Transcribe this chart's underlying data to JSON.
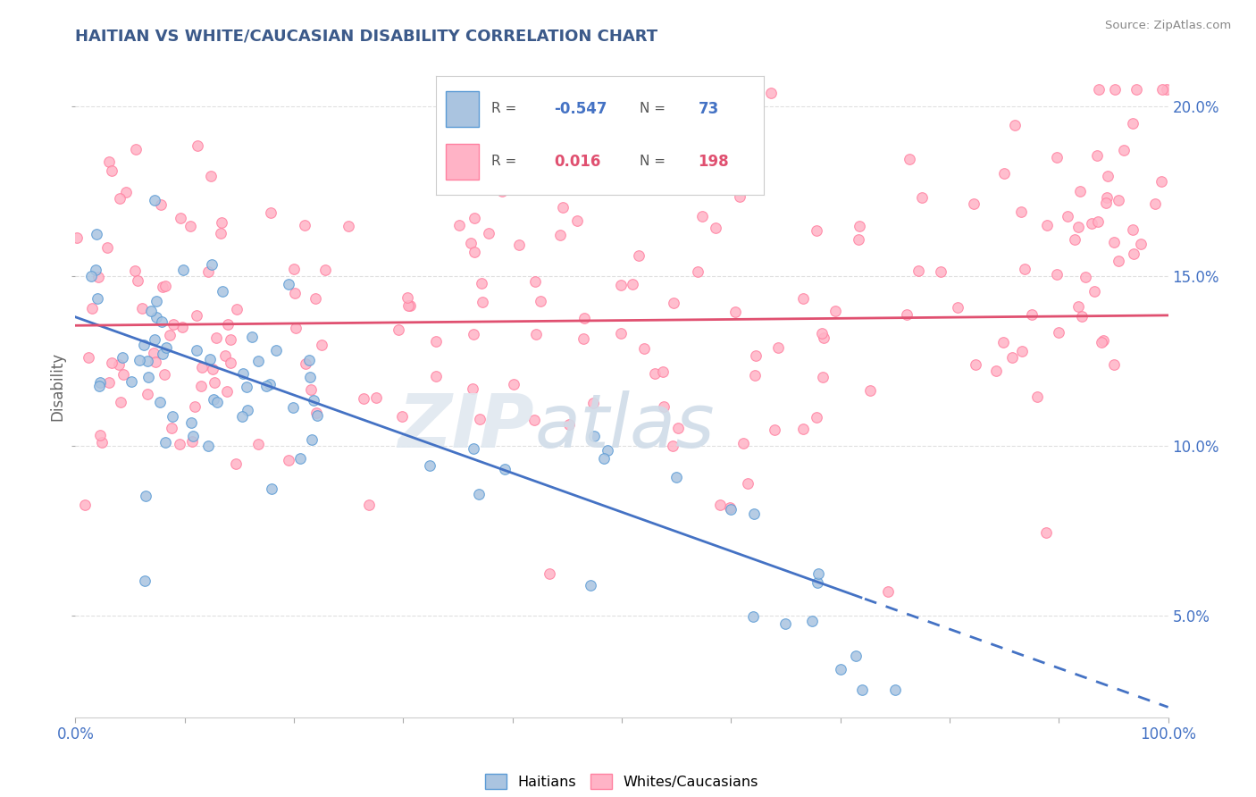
{
  "title": "HAITIAN VS WHITE/CAUCASIAN DISABILITY CORRELATION CHART",
  "source": "Source: ZipAtlas.com",
  "ylabel": "Disability",
  "xlim": [
    0,
    1
  ],
  "ylim": [
    0.02,
    0.215
  ],
  "ytick_positions": [
    0.05,
    0.1,
    0.15,
    0.2
  ],
  "ytick_labels": [
    "5.0%",
    "10.0%",
    "15.0%",
    "20.0%"
  ],
  "xtick_positions": [
    0.0,
    0.1,
    0.2,
    0.3,
    0.4,
    0.5,
    0.6,
    0.7,
    0.8,
    0.9,
    1.0
  ],
  "xtick_labels": [
    "0.0%",
    "",
    "",
    "",
    "",
    "",
    "",
    "",
    "",
    "",
    "100.0%"
  ],
  "legend_r_blue": "-0.547",
  "legend_n_blue": "73",
  "legend_r_pink": "0.016",
  "legend_n_pink": "198",
  "blue_color": "#aac4e0",
  "blue_edge": "#5b9bd5",
  "pink_color": "#ffb3c6",
  "pink_edge": "#ff80a0",
  "trend_blue": "#4472c4",
  "trend_pink": "#e05070",
  "blue_slope": -0.115,
  "blue_intercept": 0.138,
  "blue_trend_solid_end": 0.72,
  "pink_intercept": 0.137,
  "pink_slope": 0.003,
  "title_color": "#3c5a8a",
  "source_color": "#888888",
  "axis_label_color": "#4472c4",
  "ylabel_color": "#666666",
  "grid_color": "#e0e0e0",
  "watermark_zip_color": "#e0e8f0",
  "watermark_atlas_color": "#d0dce8"
}
